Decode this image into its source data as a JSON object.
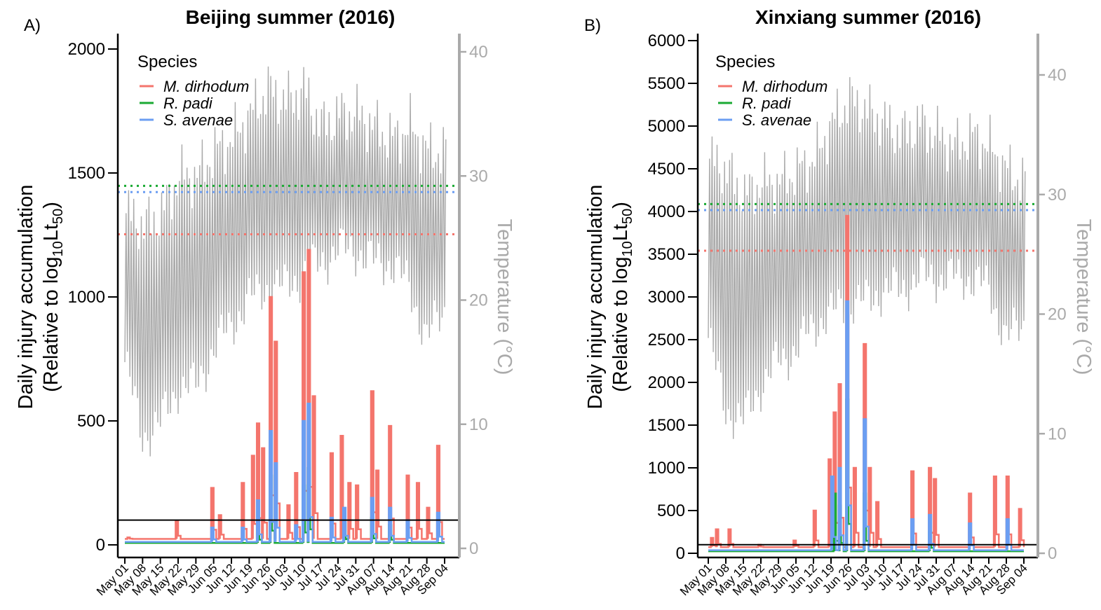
{
  "chart_data": [
    {
      "type": "line",
      "panel_label": "A)",
      "title": "Beijing summer (2016)",
      "ylabel_line1": "Daily injury accumulation",
      "ylabel_line2_prefix": "(Relative to log",
      "ylabel_line2_sub1": "10",
      "ylabel_line2_mid": "Lt",
      "ylabel_line2_sub2": "50",
      "ylabel_line2_suffix": ")",
      "ylabel_right_prefix": "Temperature (",
      "ylabel_right_unit": "°C",
      "ylabel_right_suffix": ")",
      "ylim": [
        0,
        2000
      ],
      "yticks": [
        "0",
        "500",
        "1000",
        "1500",
        "2000"
      ],
      "yticks_values": [
        0,
        500,
        1000,
        1500,
        2000
      ],
      "y2lim": [
        0,
        40
      ],
      "y2ticks": [
        "0",
        "10",
        "20",
        "30",
        "40"
      ],
      "y2ticks_values": [
        0,
        10,
        20,
        30,
        40
      ],
      "x_start": "2016-05-01",
      "x_end": "2016-09-04",
      "xtick_labels": [
        "May 01",
        "May 08",
        "May 15",
        "May 22",
        "May 29",
        "Jun 05",
        "Jun 12",
        "Jun 19",
        "Jun 26",
        "Jul 03",
        "Jul 10",
        "Jul 17",
        "Jul 24",
        "Jul 31",
        "Aug 07",
        "Aug 14",
        "Aug 21",
        "Aug 28",
        "Sep 04"
      ],
      "legend": {
        "title": "Species",
        "placement": "top-left",
        "entries": [
          "M. dirhodum",
          "R. padi",
          "S. avenae"
        ]
      },
      "hline": 100,
      "thresholds": [
        {
          "name": "R. padi",
          "value": 29.2
        },
        {
          "name": "S. avenae",
          "value": 28.7
        },
        {
          "name": "M. dirhodum",
          "value": 25.3
        }
      ],
      "temperature_band": [
        {
          "x": "2016-05-01",
          "min": 15,
          "max": 27
        },
        {
          "x": "2016-05-08",
          "min": 9,
          "max": 26
        },
        {
          "x": "2016-05-15",
          "min": 10,
          "max": 27
        },
        {
          "x": "2016-05-22",
          "min": 13,
          "max": 30
        },
        {
          "x": "2016-05-29",
          "min": 13,
          "max": 30
        },
        {
          "x": "2016-06-05",
          "min": 16,
          "max": 32
        },
        {
          "x": "2016-06-12",
          "min": 18,
          "max": 33
        },
        {
          "x": "2016-06-19",
          "min": 20,
          "max": 35
        },
        {
          "x": "2016-06-26",
          "min": 21,
          "max": 37
        },
        {
          "x": "2016-07-03",
          "min": 21,
          "max": 36
        },
        {
          "x": "2016-07-10",
          "min": 22,
          "max": 37
        },
        {
          "x": "2016-07-17",
          "min": 23,
          "max": 34
        },
        {
          "x": "2016-07-24",
          "min": 24,
          "max": 35
        },
        {
          "x": "2016-07-31",
          "min": 24,
          "max": 35
        },
        {
          "x": "2016-08-07",
          "min": 23,
          "max": 34
        },
        {
          "x": "2016-08-14",
          "min": 23,
          "max": 33
        },
        {
          "x": "2016-08-21",
          "min": 21,
          "max": 34
        },
        {
          "x": "2016-08-28",
          "min": 17,
          "max": 32
        },
        {
          "x": "2016-09-04",
          "min": 19,
          "max": 32
        }
      ],
      "series": [
        {
          "name": "M. dirhodum",
          "peaks": [
            {
              "x": "2016-05-02",
              "y": 30
            },
            {
              "x": "2016-05-21",
              "y": 95
            },
            {
              "x": "2016-06-04",
              "y": 230
            },
            {
              "x": "2016-06-07",
              "y": 120
            },
            {
              "x": "2016-06-16",
              "y": 250
            },
            {
              "x": "2016-06-20",
              "y": 360
            },
            {
              "x": "2016-06-22",
              "y": 490
            },
            {
              "x": "2016-06-24",
              "y": 390
            },
            {
              "x": "2016-06-27",
              "y": 1000
            },
            {
              "x": "2016-06-29",
              "y": 820
            },
            {
              "x": "2016-07-04",
              "y": 160
            },
            {
              "x": "2016-07-07",
              "y": 290
            },
            {
              "x": "2016-07-10",
              "y": 1100
            },
            {
              "x": "2016-07-12",
              "y": 1190
            },
            {
              "x": "2016-07-14",
              "y": 600
            },
            {
              "x": "2016-07-21",
              "y": 370
            },
            {
              "x": "2016-07-25",
              "y": 440
            },
            {
              "x": "2016-07-28",
              "y": 250
            },
            {
              "x": "2016-07-31",
              "y": 240
            },
            {
              "x": "2016-08-06",
              "y": 620
            },
            {
              "x": "2016-08-08",
              "y": 300
            },
            {
              "x": "2016-08-13",
              "y": 480
            },
            {
              "x": "2016-08-20",
              "y": 280
            },
            {
              "x": "2016-08-24",
              "y": 250
            },
            {
              "x": "2016-08-28",
              "y": 150
            },
            {
              "x": "2016-09-01",
              "y": 400
            }
          ]
        },
        {
          "name": "R. padi",
          "peaks": [
            {
              "x": "2016-06-22",
              "y": 80
            },
            {
              "x": "2016-06-27",
              "y": 280
            },
            {
              "x": "2016-07-10",
              "y": 240
            },
            {
              "x": "2016-07-12",
              "y": 310
            },
            {
              "x": "2016-07-26",
              "y": 90
            },
            {
              "x": "2016-08-06",
              "y": 110
            },
            {
              "x": "2016-08-13",
              "y": 80
            }
          ]
        },
        {
          "name": "S. avenae",
          "peaks": [
            {
              "x": "2016-06-04",
              "y": 70
            },
            {
              "x": "2016-06-16",
              "y": 70
            },
            {
              "x": "2016-06-22",
              "y": 180
            },
            {
              "x": "2016-06-27",
              "y": 460
            },
            {
              "x": "2016-06-29",
              "y": 330
            },
            {
              "x": "2016-07-07",
              "y": 80
            },
            {
              "x": "2016-07-10",
              "y": 500
            },
            {
              "x": "2016-07-12",
              "y": 570
            },
            {
              "x": "2016-07-21",
              "y": 110
            },
            {
              "x": "2016-07-26",
              "y": 150
            },
            {
              "x": "2016-08-06",
              "y": 190
            },
            {
              "x": "2016-08-13",
              "y": 150
            },
            {
              "x": "2016-08-20",
              "y": 100
            },
            {
              "x": "2016-09-01",
              "y": 130
            }
          ]
        }
      ]
    },
    {
      "type": "line",
      "panel_label": "B)",
      "title": "Xinxiang summer (2016)",
      "ylabel_line1": "Daily injury accumulation",
      "ylabel_line2_prefix": "(Relative to log",
      "ylabel_line2_sub1": "10",
      "ylabel_line2_mid": "Lt",
      "ylabel_line2_sub2": "50",
      "ylabel_line2_suffix": ")",
      "ylabel_right_prefix": "Temperature (",
      "ylabel_right_unit": "°C",
      "ylabel_right_suffix": ")",
      "ylim": [
        0,
        6000
      ],
      "yticks": [
        "0",
        "500",
        "1000",
        "1500",
        "2000",
        "2500",
        "3000",
        "3500",
        "4000",
        "4500",
        "5000",
        "5500",
        "6000"
      ],
      "yticks_values": [
        0,
        500,
        1000,
        1500,
        2000,
        2500,
        3000,
        3500,
        4000,
        4500,
        5000,
        5500,
        6000
      ],
      "y2lim": [
        0,
        40
      ],
      "y2ticks": [
        "0",
        "10",
        "20",
        "30",
        "40"
      ],
      "y2ticks_values": [
        0,
        10,
        20,
        30,
        40
      ],
      "x_start": "2016-05-01",
      "x_end": "2016-09-04",
      "xtick_labels": [
        "May 01",
        "May 08",
        "May 15",
        "May 22",
        "May 29",
        "Jun 05",
        "Jun 12",
        "Jun 19",
        "Jun 26",
        "Jul 03",
        "Jul 10",
        "Jul 17",
        "Jul 24",
        "Jul 31",
        "Aug 07",
        "Aug 14",
        "Aug 21",
        "Aug 28",
        "Sep 04"
      ],
      "legend": {
        "title": "Species",
        "placement": "top-left",
        "entries": [
          "M. dirhodum",
          "R. padi",
          "S. avenae"
        ]
      },
      "hline": 100,
      "thresholds": [
        {
          "name": "R. padi",
          "value": 29.2
        },
        {
          "name": "S. avenae",
          "value": 28.7
        },
        {
          "name": "M. dirhodum",
          "value": 25.3
        }
      ],
      "temperature_band": [
        {
          "x": "2016-05-01",
          "min": 18,
          "max": 33
        },
        {
          "x": "2016-05-08",
          "min": 12,
          "max": 32
        },
        {
          "x": "2016-05-15",
          "min": 11,
          "max": 30
        },
        {
          "x": "2016-05-22",
          "min": 14,
          "max": 31
        },
        {
          "x": "2016-05-29",
          "min": 16,
          "max": 31
        },
        {
          "x": "2016-06-05",
          "min": 17,
          "max": 32
        },
        {
          "x": "2016-06-12",
          "min": 19,
          "max": 33
        },
        {
          "x": "2016-06-19",
          "min": 20,
          "max": 36
        },
        {
          "x": "2016-06-26",
          "min": 21,
          "max": 38
        },
        {
          "x": "2016-07-03",
          "min": 21,
          "max": 37
        },
        {
          "x": "2016-07-10",
          "min": 22,
          "max": 36
        },
        {
          "x": "2016-07-17",
          "min": 22,
          "max": 35
        },
        {
          "x": "2016-07-24",
          "min": 23,
          "max": 36
        },
        {
          "x": "2016-07-31",
          "min": 23,
          "max": 35
        },
        {
          "x": "2016-08-07",
          "min": 23,
          "max": 34
        },
        {
          "x": "2016-08-14",
          "min": 23,
          "max": 35
        },
        {
          "x": "2016-08-21",
          "min": 22,
          "max": 34
        },
        {
          "x": "2016-08-28",
          "min": 18,
          "max": 32
        },
        {
          "x": "2016-09-04",
          "min": 19,
          "max": 31
        }
      ],
      "series": [
        {
          "name": "M. dirhodum",
          "peaks": [
            {
              "x": "2016-05-02",
              "y": 180
            },
            {
              "x": "2016-05-04",
              "y": 280
            },
            {
              "x": "2016-05-09",
              "y": 280
            },
            {
              "x": "2016-05-21",
              "y": 100
            },
            {
              "x": "2016-06-04",
              "y": 150
            },
            {
              "x": "2016-06-12",
              "y": 500
            },
            {
              "x": "2016-06-18",
              "y": 1100
            },
            {
              "x": "2016-06-20",
              "y": 1650
            },
            {
              "x": "2016-06-22",
              "y": 1980
            },
            {
              "x": "2016-06-25",
              "y": 3950
            },
            {
              "x": "2016-06-28",
              "y": 1000
            },
            {
              "x": "2016-07-02",
              "y": 2450
            },
            {
              "x": "2016-07-04",
              "y": 1000
            },
            {
              "x": "2016-07-07",
              "y": 600
            },
            {
              "x": "2016-07-21",
              "y": 960
            },
            {
              "x": "2016-07-28",
              "y": 1000
            },
            {
              "x": "2016-07-30",
              "y": 870
            },
            {
              "x": "2016-08-13",
              "y": 700
            },
            {
              "x": "2016-08-23",
              "y": 900
            },
            {
              "x": "2016-08-28",
              "y": 900
            },
            {
              "x": "2016-09-02",
              "y": 520
            }
          ]
        },
        {
          "name": "R. padi",
          "peaks": [
            {
              "x": "2016-06-20",
              "y": 700
            },
            {
              "x": "2016-06-22",
              "y": 560
            },
            {
              "x": "2016-06-25",
              "y": 1800
            },
            {
              "x": "2016-07-02",
              "y": 700
            },
            {
              "x": "2016-07-28",
              "y": 250
            }
          ]
        },
        {
          "name": "S. avenae",
          "peaks": [
            {
              "x": "2016-06-19",
              "y": 900
            },
            {
              "x": "2016-06-22",
              "y": 1000
            },
            {
              "x": "2016-06-25",
              "y": 2950
            },
            {
              "x": "2016-07-02",
              "y": 1570
            },
            {
              "x": "2016-07-21",
              "y": 400
            },
            {
              "x": "2016-07-28",
              "y": 450
            },
            {
              "x": "2016-08-13",
              "y": 350
            },
            {
              "x": "2016-08-28",
              "y": 400
            }
          ]
        }
      ]
    }
  ],
  "colors": {
    "M. dirhodum": "#f4756d",
    "R. padi": "#1aaa33",
    "S. avenae": "#6b9ef2",
    "temperature": "#aaaaaa",
    "hline": "#000000"
  }
}
